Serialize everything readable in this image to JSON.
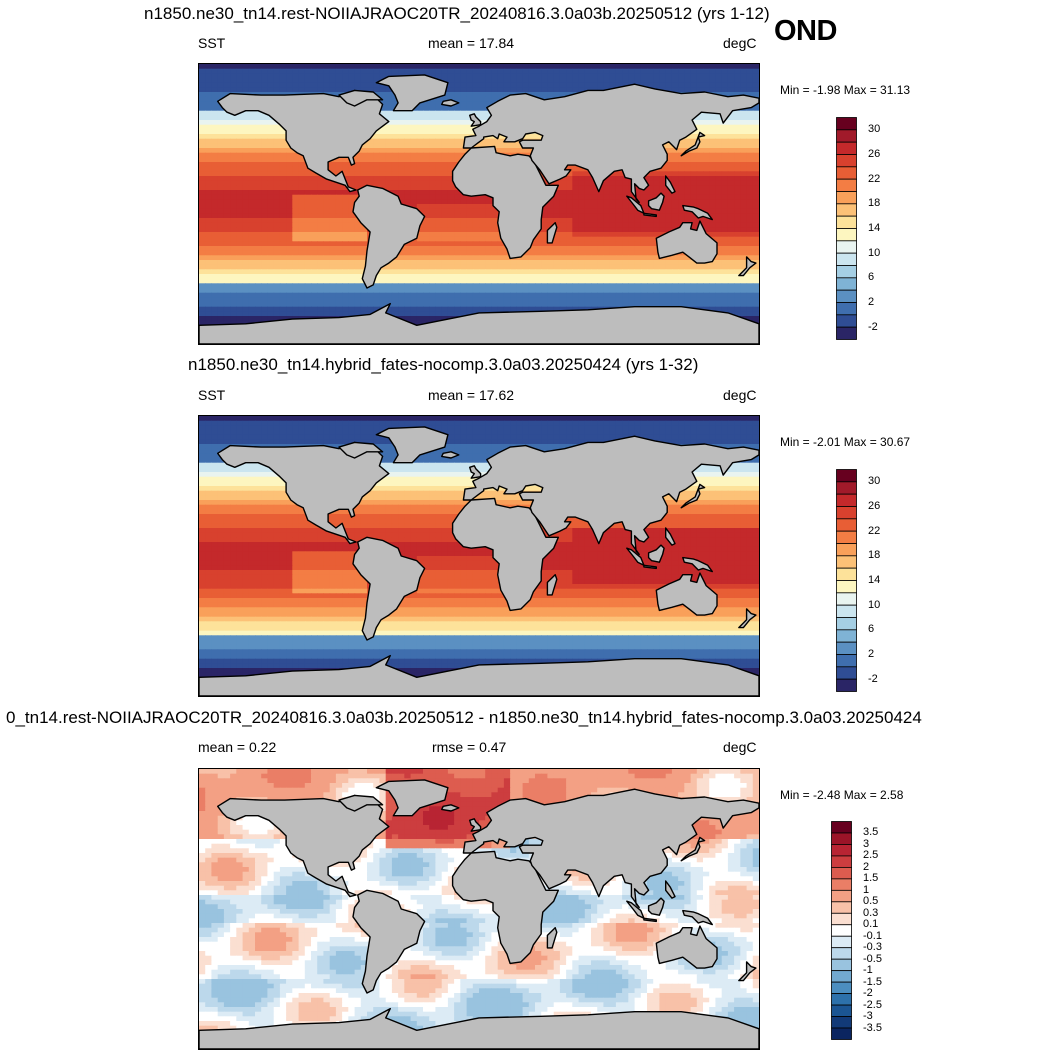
{
  "season": "OND",
  "panels": [
    {
      "title": "n1850.ne30_tn14.rest-NOIIAJRAOC20TR_20240816.3.0a03b.20250512 (yrs 1-12)",
      "left_label": "SST",
      "center_label": "mean =  17.84",
      "units": "degC",
      "minmax": "Min =  -1.98 Max =  31.13"
    },
    {
      "title": "n1850.ne30_tn14.hybrid_fates-nocomp.3.0a03.20250424 (yrs 1-32)",
      "left_label": "SST",
      "center_label": "mean =  17.62",
      "units": "degC",
      "minmax": "Min =  -2.01 Max =  30.67"
    },
    {
      "title": "0_tn14.rest-NOIIAJRAOC20TR_20240816.3.0a03b.20250512 - n1850.ne30_tn14.hybrid_fates-nocomp.3.0a03.20250424",
      "left_label": "mean =   0.22",
      "center_label": "rmse =   0.47",
      "units": "degC",
      "minmax": "Min =  -2.48 Max =   2.58"
    }
  ],
  "chart_data": [
    {
      "type": "heatmap",
      "variable": "SST",
      "units": "degC",
      "mean": 17.84,
      "min": -1.98,
      "max": 31.13,
      "colorbar": {
        "tick_labels": [
          "30",
          "26",
          "22",
          "18",
          "14",
          "10",
          "6",
          "2",
          "-2"
        ],
        "colors": [
          "#67001f",
          "#a11a2a",
          "#c4292b",
          "#d8412e",
          "#e85e35",
          "#f37d44",
          "#f9a05a",
          "#fcc177",
          "#fde29a",
          "#fdf6c0",
          "#e9f4f0",
          "#cbe5ef",
          "#a5cfe4",
          "#7fb3d5",
          "#5b90c2",
          "#3f6eae",
          "#2f4d94",
          "#2a2566"
        ]
      }
    },
    {
      "type": "heatmap",
      "variable": "SST",
      "units": "degC",
      "mean": 17.62,
      "min": -2.01,
      "max": 30.67,
      "colorbar": {
        "tick_labels": [
          "30",
          "26",
          "22",
          "18",
          "14",
          "10",
          "6",
          "2",
          "-2"
        ],
        "colors": [
          "#67001f",
          "#a11a2a",
          "#c4292b",
          "#d8412e",
          "#e85e35",
          "#f37d44",
          "#f9a05a",
          "#fcc177",
          "#fde29a",
          "#fdf6c0",
          "#e9f4f0",
          "#cbe5ef",
          "#a5cfe4",
          "#7fb3d5",
          "#5b90c2",
          "#3f6eae",
          "#2f4d94",
          "#2a2566"
        ]
      }
    },
    {
      "type": "heatmap",
      "variable": "SST difference",
      "units": "degC",
      "mean": 0.22,
      "rmse": 0.47,
      "min": -2.48,
      "max": 2.58,
      "colorbar": {
        "tick_labels": [
          "3.5",
          "3",
          "2.5",
          "2",
          "1.5",
          "1",
          "0.5",
          "0.3",
          "0.1",
          "-0.1",
          "-0.3",
          "-0.5",
          "-1",
          "-1.5",
          "-2",
          "-2.5",
          "-3",
          "-3.5"
        ],
        "colors": [
          "#67001f",
          "#9b1428",
          "#b82433",
          "#cc3d3f",
          "#dd5c4f",
          "#ea7e66",
          "#f3a084",
          "#f8c1a8",
          "#fbdfd1",
          "#ffffff",
          "#dcebf5",
          "#bcd8eb",
          "#99c3df",
          "#72a9d0",
          "#4c8ec0",
          "#2d71ab",
          "#1b5593",
          "#123a78",
          "#0b2560"
        ]
      }
    }
  ],
  "colors": {
    "land": "#bdbdbd",
    "coastline": "#000000",
    "frame": "#000000"
  }
}
